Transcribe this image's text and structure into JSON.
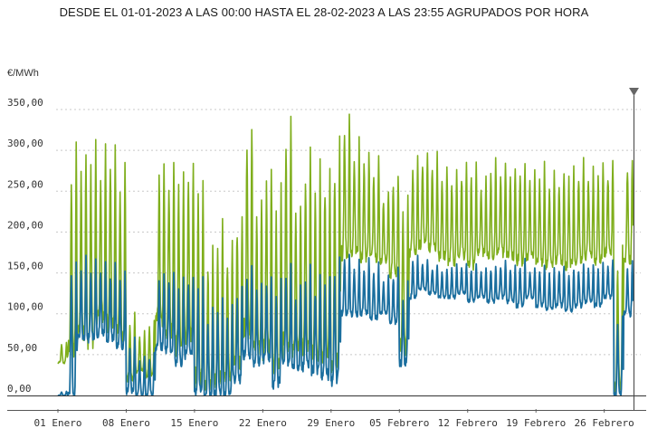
{
  "chart_data": {
    "type": "line",
    "title": "DESDE EL 01-01-2023 A LAS 00:00 HASTA EL 28-02-2023 A LAS 23:55 AGRUPADOS POR HORA",
    "ylabel": "€/MWh",
    "xlabel": "",
    "ylim": [
      0,
      350
    ],
    "xlim": [
      0,
      59
    ],
    "grid": "horizontal dotted",
    "y_ticks": [
      "0,00",
      "50,00",
      "100,00",
      "150,00",
      "200,00",
      "250,00",
      "300,00",
      "350,00"
    ],
    "x_ticks": [
      {
        "day": 0,
        "label": "01 Enero"
      },
      {
        "day": 7,
        "label": "08 Enero"
      },
      {
        "day": 14,
        "label": "15 Enero"
      },
      {
        "day": 21,
        "label": "22 Enero"
      },
      {
        "day": 28,
        "label": "29 Enero"
      },
      {
        "day": 35,
        "label": "05 Febrero"
      },
      {
        "day": 42,
        "label": "12 Febrero"
      },
      {
        "day": 49,
        "label": "19 Febrero"
      },
      {
        "day": 56,
        "label": "26 Febrero"
      }
    ],
    "series": [
      {
        "color": "#7fae1c",
        "daily_min": [
          40,
          55,
          80,
          70,
          95,
          90,
          75,
          20,
          30,
          25,
          90,
          80,
          60,
          75,
          20,
          15,
          20,
          25,
          40,
          80,
          60,
          55,
          35,
          60,
          55,
          55,
          50,
          45,
          35,
          175,
          175,
          170,
          170,
          165,
          150,
          60,
          175,
          185,
          180,
          170,
          165,
          170,
          160,
          175,
          170,
          175,
          170,
          165,
          170,
          165,
          160,
          165,
          160,
          165,
          170,
          165,
          175,
          10,
          165
        ],
        "daily_max": [
          65,
          300,
          295,
          305,
          300,
          310,
          280,
          100,
          80,
          90,
          290,
          295,
          280,
          285,
          270,
          180,
          210,
          190,
          230,
          340,
          250,
          290,
          250,
          350,
          240,
          300,
          280,
          290,
          310,
          350,
          310,
          300,
          290,
          250,
          275,
          250,
          300,
          300,
          295,
          280,
          280,
          285,
          285,
          270,
          285,
          290,
          280,
          290,
          275,
          280,
          270,
          275,
          280,
          285,
          280,
          285,
          285,
          180,
          295
        ]
      },
      {
        "color": "#1a6e9e",
        "daily_min": [
          0,
          0,
          70,
          70,
          75,
          70,
          60,
          5,
          0,
          0,
          60,
          55,
          40,
          50,
          5,
          0,
          0,
          0,
          20,
          50,
          40,
          45,
          15,
          40,
          35,
          35,
          30,
          25,
          20,
          100,
          100,
          100,
          95,
          100,
          90,
          40,
          120,
          130,
          125,
          120,
          120,
          125,
          115,
          120,
          115,
          120,
          115,
          110,
          120,
          110,
          105,
          110,
          105,
          110,
          115,
          110,
          120,
          0,
          100
        ]
      },
      {
        "color": "#1a6e9e",
        "daily_max": [
          5,
          165,
          170,
          165,
          165,
          160,
          150,
          70,
          50,
          55,
          150,
          155,
          140,
          150,
          145,
          105,
          120,
          110,
          130,
          160,
          140,
          150,
          140,
          160,
          135,
          155,
          145,
          150,
          165,
          175,
          165,
          165,
          160,
          145,
          155,
          135,
          170,
          165,
          160,
          155,
          160,
          160,
          160,
          155,
          160,
          165,
          160,
          165,
          155,
          160,
          155,
          160,
          155,
          160,
          160,
          160,
          165,
          100,
          165
        ]
      }
    ]
  }
}
